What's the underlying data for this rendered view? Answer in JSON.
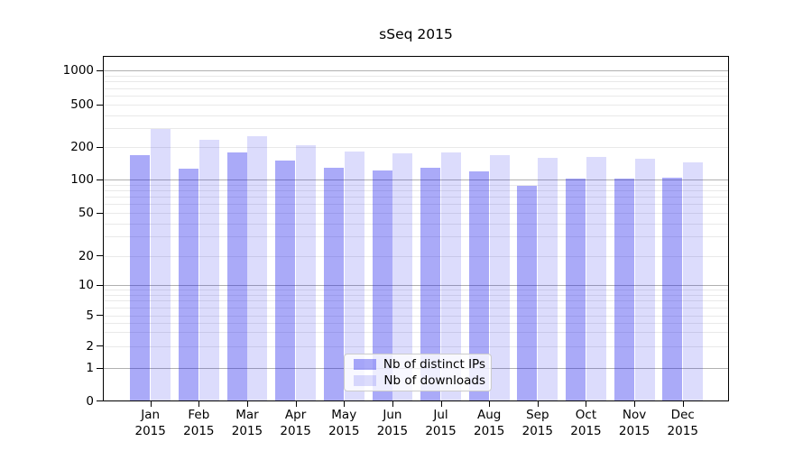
{
  "chart_data": {
    "type": "bar",
    "title": "sSeq 2015",
    "categories": [
      "Jan 2015",
      "Feb 2015",
      "Mar 2015",
      "Apr 2015",
      "May 2015",
      "Jun 2015",
      "Jul 2015",
      "Aug 2015",
      "Sep 2015",
      "Oct 2015",
      "Nov 2015",
      "Dec 2015"
    ],
    "series": [
      {
        "name": "Nb of distinct IPs",
        "color": "rgba(20,20,235,0.36)",
        "values": [
          170,
          126,
          180,
          151,
          129,
          121,
          130,
          120,
          88,
          102,
          103,
          105
        ]
      },
      {
        "name": "Nb of downloads",
        "color": "rgba(20,20,235,0.15)",
        "values": [
          299,
          233,
          256,
          211,
          184,
          175,
          179,
          170,
          159,
          164,
          156,
          145
        ]
      }
    ],
    "yaxis": {
      "scale": "symlog",
      "ticks": [
        0,
        1,
        2,
        5,
        10,
        20,
        50,
        100,
        200,
        500,
        1000
      ],
      "ylim": [
        0,
        1300
      ]
    },
    "grid": {
      "major_values": [
        1,
        10,
        100,
        1000
      ],
      "minor_values": [
        2,
        3,
        4,
        5,
        6,
        7,
        8,
        9,
        20,
        30,
        40,
        50,
        60,
        70,
        80,
        90,
        200,
        300,
        400,
        500,
        600,
        700,
        800,
        900
      ],
      "major_color": "#b0b0b0",
      "minor_color": "#e9e9e9"
    },
    "legend": {
      "position": "lower center"
    }
  }
}
